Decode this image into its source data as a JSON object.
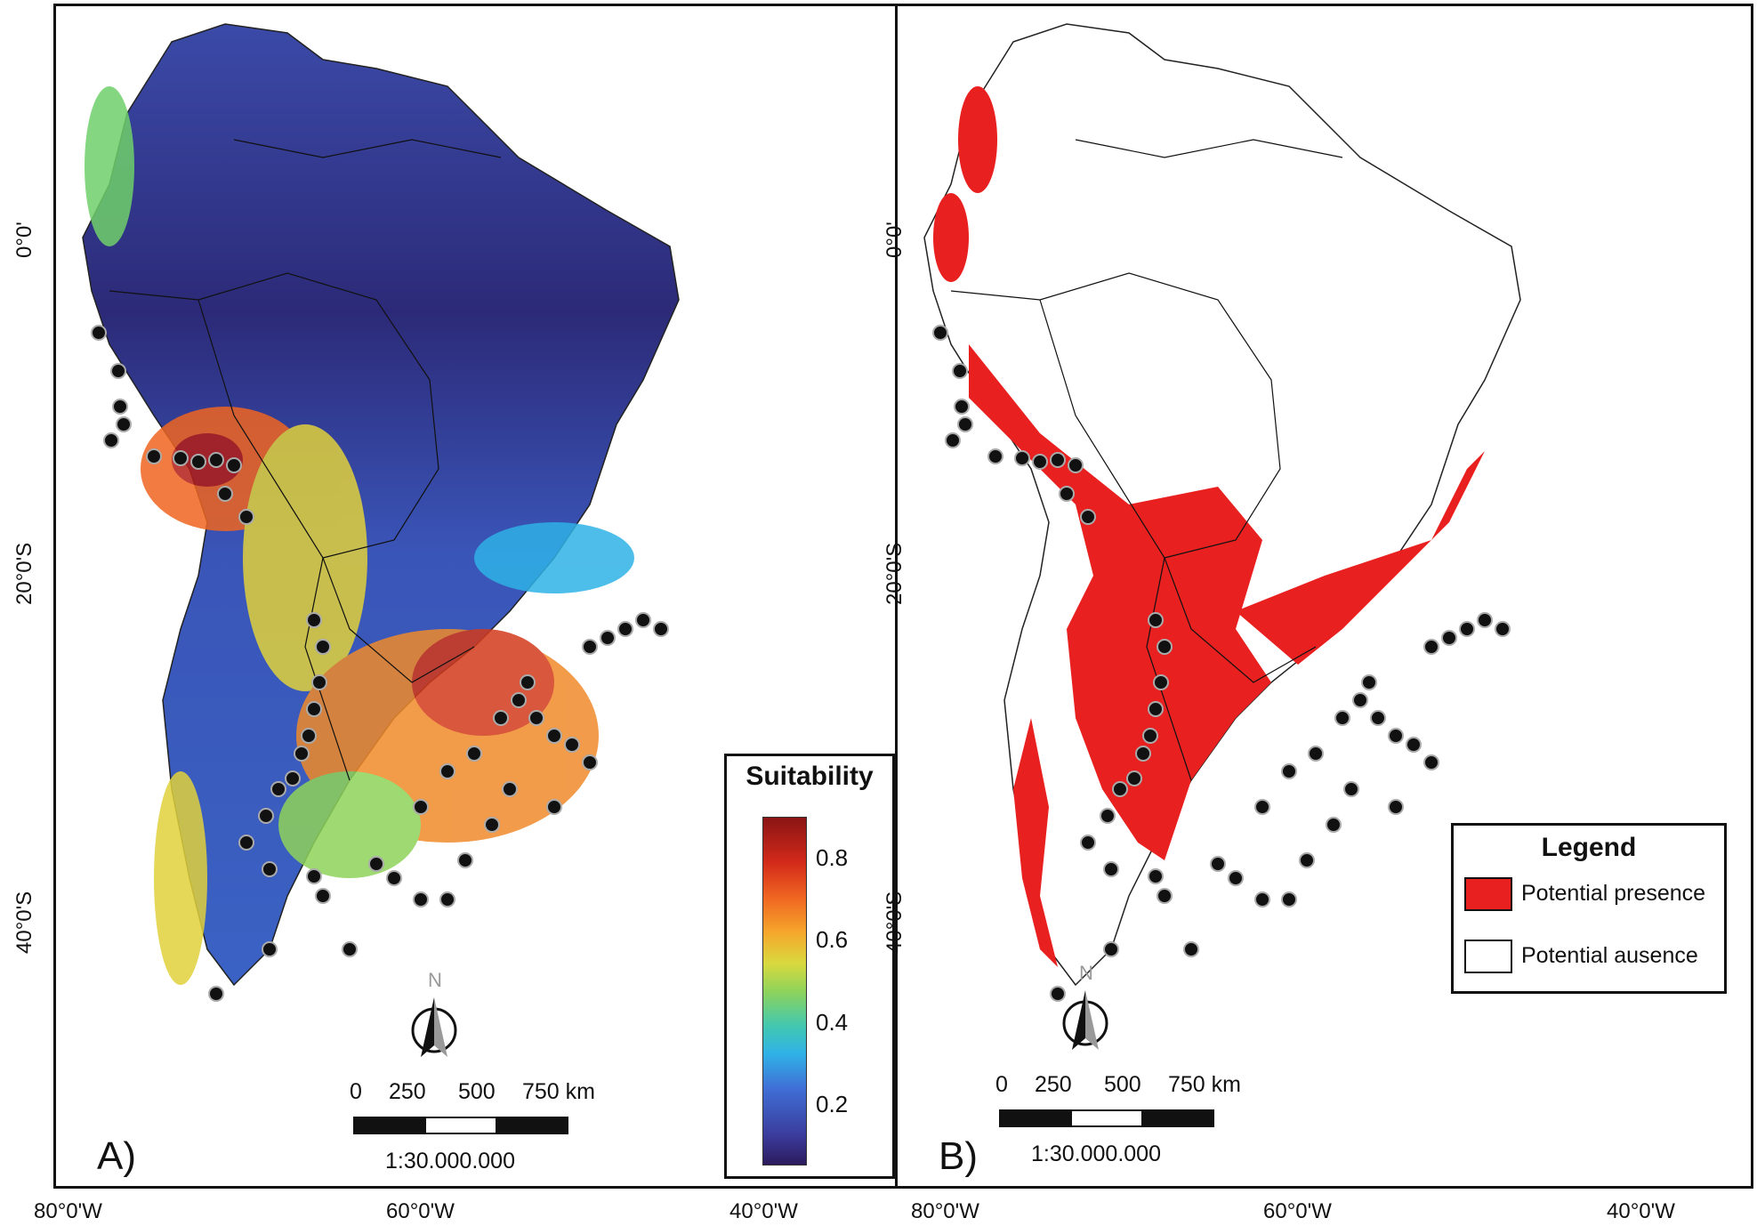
{
  "panels": [
    {
      "label": "A)",
      "legend": {
        "title": "Suitability",
        "ticks": [
          "0.8",
          "0.6",
          "0.4",
          "0.2"
        ],
        "tick_values": [
          0.8,
          0.6,
          0.4,
          0.2
        ],
        "range": [
          0.05,
          0.9
        ]
      },
      "scale": {
        "labels": [
          "0",
          "250",
          "500",
          "750 km"
        ],
        "ratio": "1:30.000.000"
      },
      "north_label": "N"
    },
    {
      "label": "B)",
      "legend": {
        "title": "Legend",
        "items": [
          {
            "label": "Potential presence",
            "color": "#e8201f"
          },
          {
            "label": "Potential ausence",
            "color": "#ffffff"
          }
        ]
      },
      "scale": {
        "labels": [
          "0",
          "250",
          "500",
          "750 km"
        ],
        "ratio": "1:30.000.000"
      },
      "north_label": "N"
    }
  ],
  "axes": {
    "x_ticks": [
      "80°0'W",
      "60°0'W",
      "40°0'W"
    ],
    "y_ticks": [
      "0°0'",
      "20°0'S",
      "40°0'S"
    ]
  },
  "colors": {
    "presence": "#e8201f",
    "low_suitability": "#2e2a78",
    "high_suitability": "#8a1414",
    "occurrence_point": "#111111"
  },
  "legend_symbols": [
    "north-arrow-icon"
  ]
}
